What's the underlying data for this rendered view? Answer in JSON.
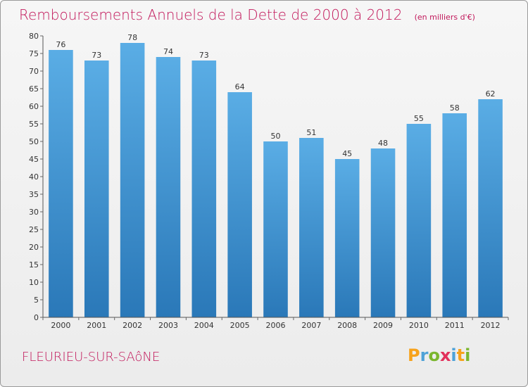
{
  "header": {
    "title": "Remboursements Annuels de la Dette de 2000 à 2012",
    "unit": "(en milliers d'€)"
  },
  "footer": {
    "location": "FLEURIEU-SUR-SAôNE",
    "logo_letters": [
      "P",
      "r",
      "o",
      "x",
      "i",
      "t",
      "i"
    ]
  },
  "colors": {
    "title": "#c2185b",
    "bar_top": "#5aade5",
    "bar_bottom": "#2a78b8",
    "axis": "#555555",
    "grid_tick": "#666666"
  },
  "chart_data": {
    "type": "bar",
    "title": "Remboursements Annuels de la Dette de 2000 à 2012",
    "xlabel": "",
    "ylabel": "",
    "categories": [
      "2000",
      "2001",
      "2002",
      "2003",
      "2004",
      "2005",
      "2006",
      "2007",
      "2008",
      "2009",
      "2010",
      "2011",
      "2012"
    ],
    "values": [
      76,
      73,
      78,
      74,
      73,
      64,
      50,
      51,
      45,
      48,
      55,
      58,
      62
    ],
    "ylim": [
      0,
      80
    ],
    "yticks": [
      0,
      5,
      10,
      15,
      20,
      25,
      30,
      35,
      40,
      45,
      50,
      55,
      60,
      65,
      70,
      75,
      80
    ],
    "grid": false,
    "legend": "none"
  }
}
